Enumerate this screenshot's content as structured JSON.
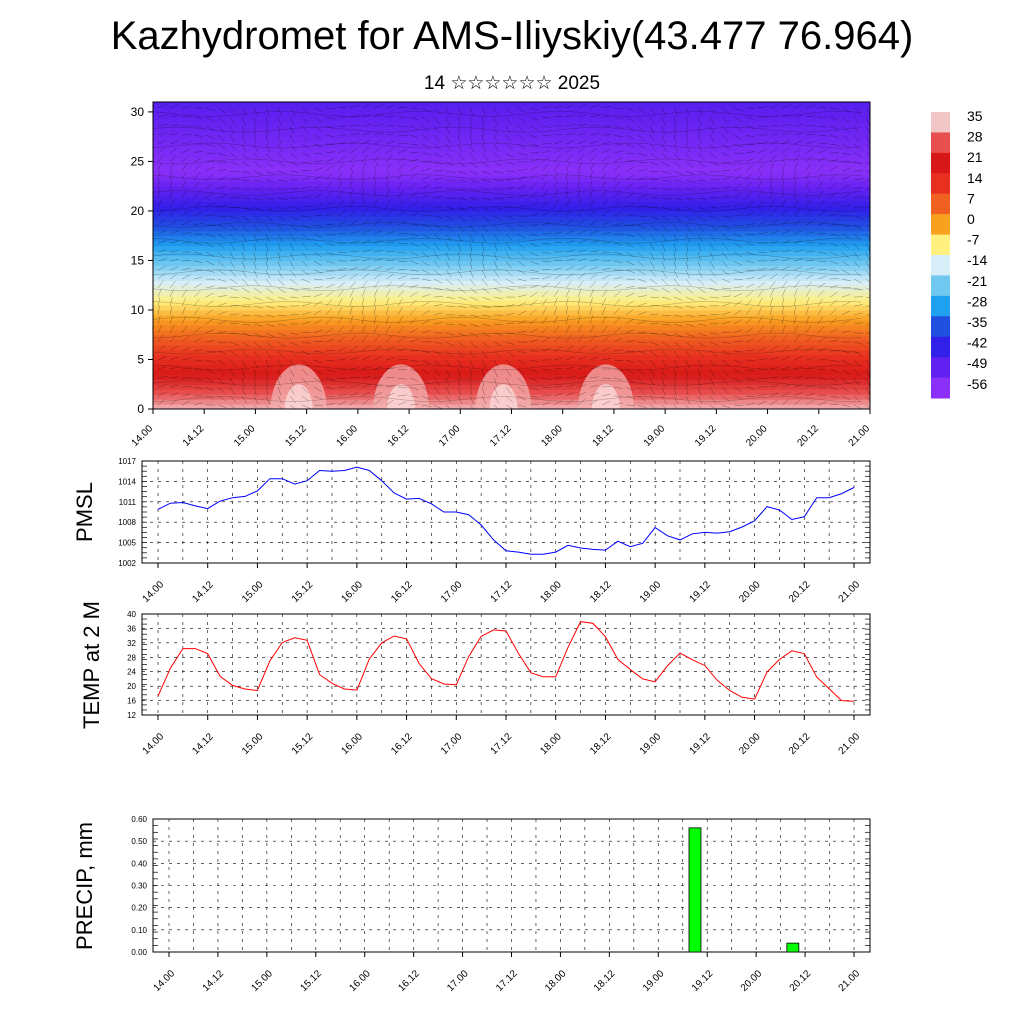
{
  "header": {
    "title": "Kazhydromet for AMS-Iliyskiy(43.477 76.964)",
    "subtitle": "14 ☆☆☆☆☆☆ 2025"
  },
  "chart_data": [
    {
      "type": "heatmap",
      "name": "vertical-section",
      "ylim": [
        0,
        31
      ],
      "y_ticks": [
        "0",
        "5",
        "10",
        "15",
        "20",
        "25",
        "30"
      ],
      "x_ticks": [
        "14.00",
        "14.12",
        "15.00",
        "15.12",
        "16.00",
        "16.12",
        "17.00",
        "17.12",
        "18.00",
        "18.12",
        "19.00",
        "19.12",
        "20.00",
        "20.12",
        "21.00"
      ],
      "colorbar": {
        "labels": [
          "35",
          "28",
          "21",
          "14",
          "7",
          "0",
          "-7",
          "-14",
          "-21",
          "-28",
          "-35",
          "-42",
          "-49",
          "-56"
        ],
        "colors": [
          "#f2c6c6",
          "#e85050",
          "#d81818",
          "#e83020",
          "#f06020",
          "#f8a020",
          "#fff080",
          "#d8eef8",
          "#70c8f0",
          "#20a0f0",
          "#2050e0",
          "#3020e8",
          "#6020f0",
          "#8a30f8"
        ]
      },
      "warm_cores": [
        {
          "x": "15.12"
        },
        {
          "x": "16.12"
        },
        {
          "x": "17.12"
        },
        {
          "x": "18.12"
        }
      ],
      "isotherm_color": "#000000"
    },
    {
      "type": "line",
      "name": "pmsl",
      "ylabel": "PMSL",
      "ylim": [
        1002,
        1017
      ],
      "y_ticks": [
        "1002",
        "1005",
        "1008",
        "1011",
        "1014",
        "1017"
      ],
      "x_ticks": [
        "14.00",
        "14.12",
        "15.00",
        "15.12",
        "16.00",
        "16.12",
        "17.00",
        "17.12",
        "18.00",
        "18.12",
        "19.00",
        "19.12",
        "20.00",
        "20.12",
        "21.00"
      ],
      "color": "#0000ff",
      "values": [
        1009.9,
        1010.8,
        1010.9,
        1010.4,
        1010.0,
        1011.1,
        1011.6,
        1011.8,
        1012.6,
        1014.4,
        1014.4,
        1013.6,
        1014.1,
        1015.6,
        1015.5,
        1015.6,
        1016.1,
        1015.6,
        1014.1,
        1012.3,
        1011.4,
        1011.5,
        1010.7,
        1009.5,
        1009.5,
        1009.1,
        1007.6,
        1005.4,
        1003.8,
        1003.6,
        1003.3,
        1003.3,
        1003.6,
        1004.6,
        1004.2,
        1004.0,
        1003.9,
        1005.2,
        1004.4,
        1004.9,
        1007.2,
        1006.0,
        1005.4,
        1006.3,
        1006.5,
        1006.4,
        1006.6,
        1007.3,
        1008.2,
        1010.3,
        1009.8,
        1008.4,
        1008.8,
        1011.6,
        1011.6,
        1012.2,
        1013.1
      ]
    },
    {
      "type": "line",
      "name": "temp-2m",
      "ylabel": "TEMP at 2 M",
      "ylim": [
        12,
        40
      ],
      "y_ticks": [
        "12",
        "16",
        "20",
        "24",
        "28",
        "32",
        "36",
        "40"
      ],
      "x_ticks": [
        "14.00",
        "14.12",
        "15.00",
        "15.12",
        "16.00",
        "16.12",
        "17.00",
        "17.12",
        "18.00",
        "18.12",
        "19.00",
        "19.12",
        "20.00",
        "20.12",
        "21.00"
      ],
      "color": "#ff0000",
      "values": [
        17.2,
        25.0,
        30.4,
        30.4,
        29.0,
        22.7,
        20.2,
        19.2,
        18.8,
        27.0,
        32.1,
        33.4,
        32.7,
        23.2,
        20.8,
        19.2,
        18.9,
        27.5,
        32.0,
        33.9,
        33.1,
        26.3,
        22.1,
        20.6,
        20.4,
        28.2,
        33.8,
        35.6,
        35.3,
        29.1,
        23.7,
        22.6,
        22.6,
        30.8,
        37.9,
        37.4,
        33.7,
        27.4,
        24.6,
        22.0,
        21.2,
        25.7,
        29.2,
        27.3,
        25.7,
        21.6,
        18.8,
        16.9,
        16.4,
        23.9,
        27.4,
        29.8,
        29.0,
        22.5,
        19.3,
        16.0,
        15.8
      ]
    },
    {
      "type": "bar",
      "name": "precip",
      "ylabel": "PRECIP, mm",
      "ylim": [
        0,
        0.6
      ],
      "y_ticks": [
        "0.00",
        "0.10",
        "0.20",
        "0.30",
        "0.40",
        "0.50",
        "0.60"
      ],
      "x_ticks": [
        "14.00",
        "14.12",
        "15.00",
        "15.12",
        "16.00",
        "16.12",
        "17.00",
        "17.12",
        "18.00",
        "18.12",
        "19.00",
        "19.12",
        "20.00",
        "20.12",
        "21.00"
      ],
      "color": "#00ff00",
      "bars": [
        {
          "x_hours": 129,
          "value": 0.56
        },
        {
          "x_hours": 153,
          "value": 0.04
        }
      ]
    }
  ]
}
